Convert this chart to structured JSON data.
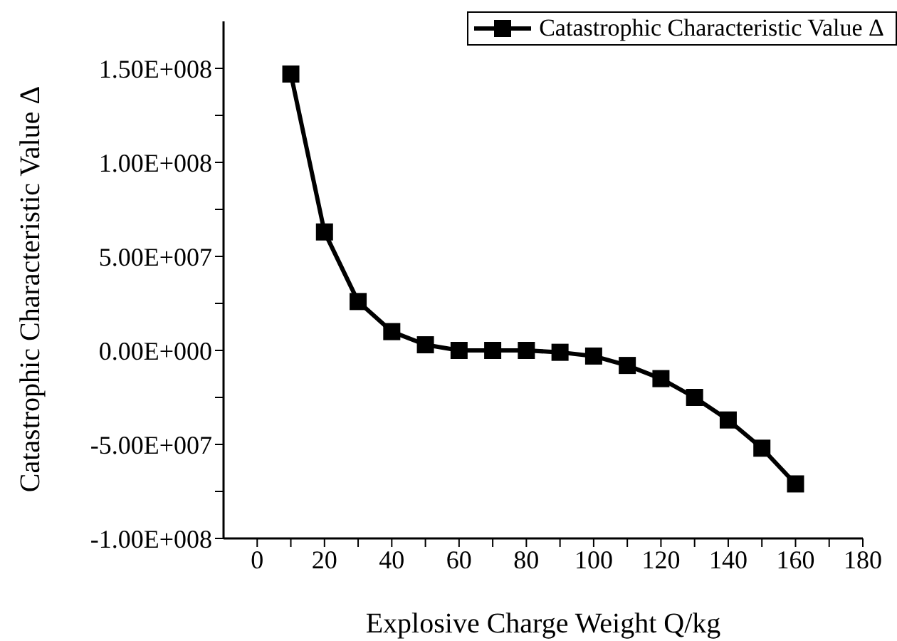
{
  "chart_data": {
    "type": "line",
    "xlabel": "Explosive Charge Weight Q/kg",
    "ylabel": "Catastrophic Characteristic Value  Δ",
    "x": [
      10,
      20,
      30,
      40,
      50,
      60,
      70,
      80,
      90,
      100,
      110,
      120,
      130,
      140,
      150,
      160
    ],
    "series": [
      {
        "name": "Catastrophic Characteristic Value  Δ",
        "color": "#000000",
        "values": [
          147000000,
          63000000,
          26000000,
          10000000,
          3000000,
          0,
          0,
          0,
          -1000000,
          -3000000,
          -8000000,
          -15000000,
          -25000000,
          -37000000,
          -52000000,
          -71000000
        ]
      }
    ],
    "xlim": [
      -10,
      180
    ],
    "xticks": [
      0,
      {
        "value": 10,
        "label": null
      },
      20,
      {
        "value": 30,
        "label": null
      },
      40,
      {
        "value": 50,
        "label": null
      },
      60,
      {
        "value": 70,
        "label": null
      },
      80,
      {
        "value": 90,
        "label": null
      },
      100,
      {
        "value": 110,
        "label": null
      },
      120,
      {
        "value": 130,
        "label": null
      },
      140,
      {
        "value": 150,
        "label": null
      },
      160,
      {
        "value": 170,
        "label": null
      },
      180
    ],
    "ylim": [
      -100000000,
      175000000
    ],
    "yticks": [
      {
        "value": -100000000,
        "label": "-1.00E+008"
      },
      {
        "value": -75000000,
        "label": null
      },
      {
        "value": -50000000,
        "label": "-5.00E+007"
      },
      {
        "value": -25000000,
        "label": null
      },
      {
        "value": 0,
        "label": "0.00E+000"
      },
      {
        "value": 25000000,
        "label": null
      },
      {
        "value": 50000000,
        "label": "5.00E+007"
      },
      {
        "value": 75000000,
        "label": null
      },
      {
        "value": 100000000,
        "label": "1.00E+008"
      },
      {
        "value": 125000000,
        "label": null
      },
      {
        "value": 150000000,
        "label": "1.50E+008"
      }
    ],
    "grid": false,
    "legend": "top right",
    "marker": "square",
    "line_style": "solid"
  }
}
